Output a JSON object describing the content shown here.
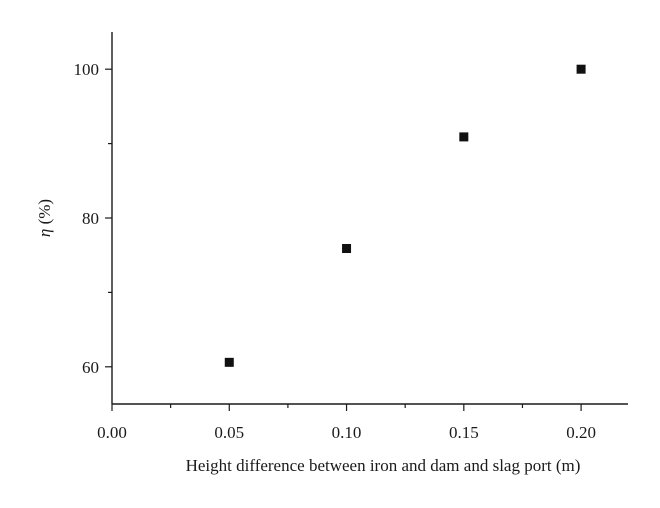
{
  "chart_data": {
    "type": "scatter",
    "xlabel": "Height difference between iron and dam and slag port (m)",
    "ylabel_symbol": "η",
    "ylabel_unit": " (%)",
    "xlim": [
      0.0,
      0.22
    ],
    "ylim": [
      55,
      105
    ],
    "x_ticks": [
      {
        "value": 0.0,
        "label": "0.00"
      },
      {
        "value": 0.05,
        "label": "0.05"
      },
      {
        "value": 0.1,
        "label": "0.10"
      },
      {
        "value": 0.15,
        "label": "0.15"
      },
      {
        "value": 0.2,
        "label": "0.20"
      }
    ],
    "x_minor_ticks": [
      0.025,
      0.075,
      0.125,
      0.175
    ],
    "y_ticks": [
      {
        "value": 60,
        "label": "60"
      },
      {
        "value": 80,
        "label": "80"
      },
      {
        "value": 100,
        "label": "100"
      }
    ],
    "y_minor_ticks": [
      70,
      90
    ],
    "grid": false,
    "legend": "none",
    "marker_color": "#111111",
    "points": [
      {
        "x": 0.05,
        "y": 60.6
      },
      {
        "x": 0.1,
        "y": 75.9
      },
      {
        "x": 0.15,
        "y": 90.9
      },
      {
        "x": 0.2,
        "y": 100.0
      }
    ]
  }
}
